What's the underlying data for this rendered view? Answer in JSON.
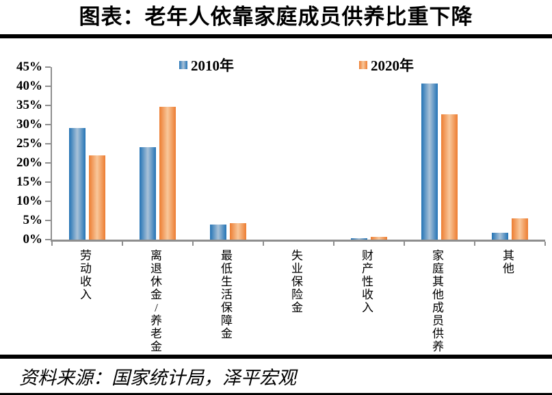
{
  "title": "图表：老年人依靠家庭成员供养比重下降",
  "source_note": "资料来源：国家统计局，泽平宏观",
  "colors": {
    "axis": "#8e8e8e",
    "rule": "#000000",
    "series_2010_edge": "#2373B5",
    "series_2010_mid": "#A9C2D8",
    "series_2020_edge": "#ED7D31",
    "series_2020_mid": "#F8C79B"
  },
  "chart_data": {
    "type": "bar",
    "title": "图表：老年人依靠家庭成员供养比重下降",
    "categories": [
      "劳动收入",
      "离退休金/养老金",
      "最低生活保障金",
      "失业保险金",
      "财产性收入",
      "家庭其他成员供养",
      "其他"
    ],
    "series": [
      {
        "name": "2010年",
        "color_edge": "#2373B5",
        "color_mid": "#A9C2D8",
        "values": [
          29.1,
          24.1,
          3.9,
          0,
          0.4,
          40.7,
          1.8
        ]
      },
      {
        "name": "2020年",
        "color_edge": "#ED7D31",
        "color_mid": "#F8C79B",
        "values": [
          22.0,
          34.7,
          4.2,
          0,
          0.7,
          32.7,
          5.5
        ]
      }
    ],
    "xlabel": "",
    "ylabel": "",
    "yticks": [
      "0%",
      "5%",
      "10%",
      "15%",
      "20%",
      "25%",
      "30%",
      "35%",
      "40%",
      "45%"
    ],
    "ylim": [
      0,
      45
    ],
    "grid": false,
    "legend_position": "top-inside"
  }
}
